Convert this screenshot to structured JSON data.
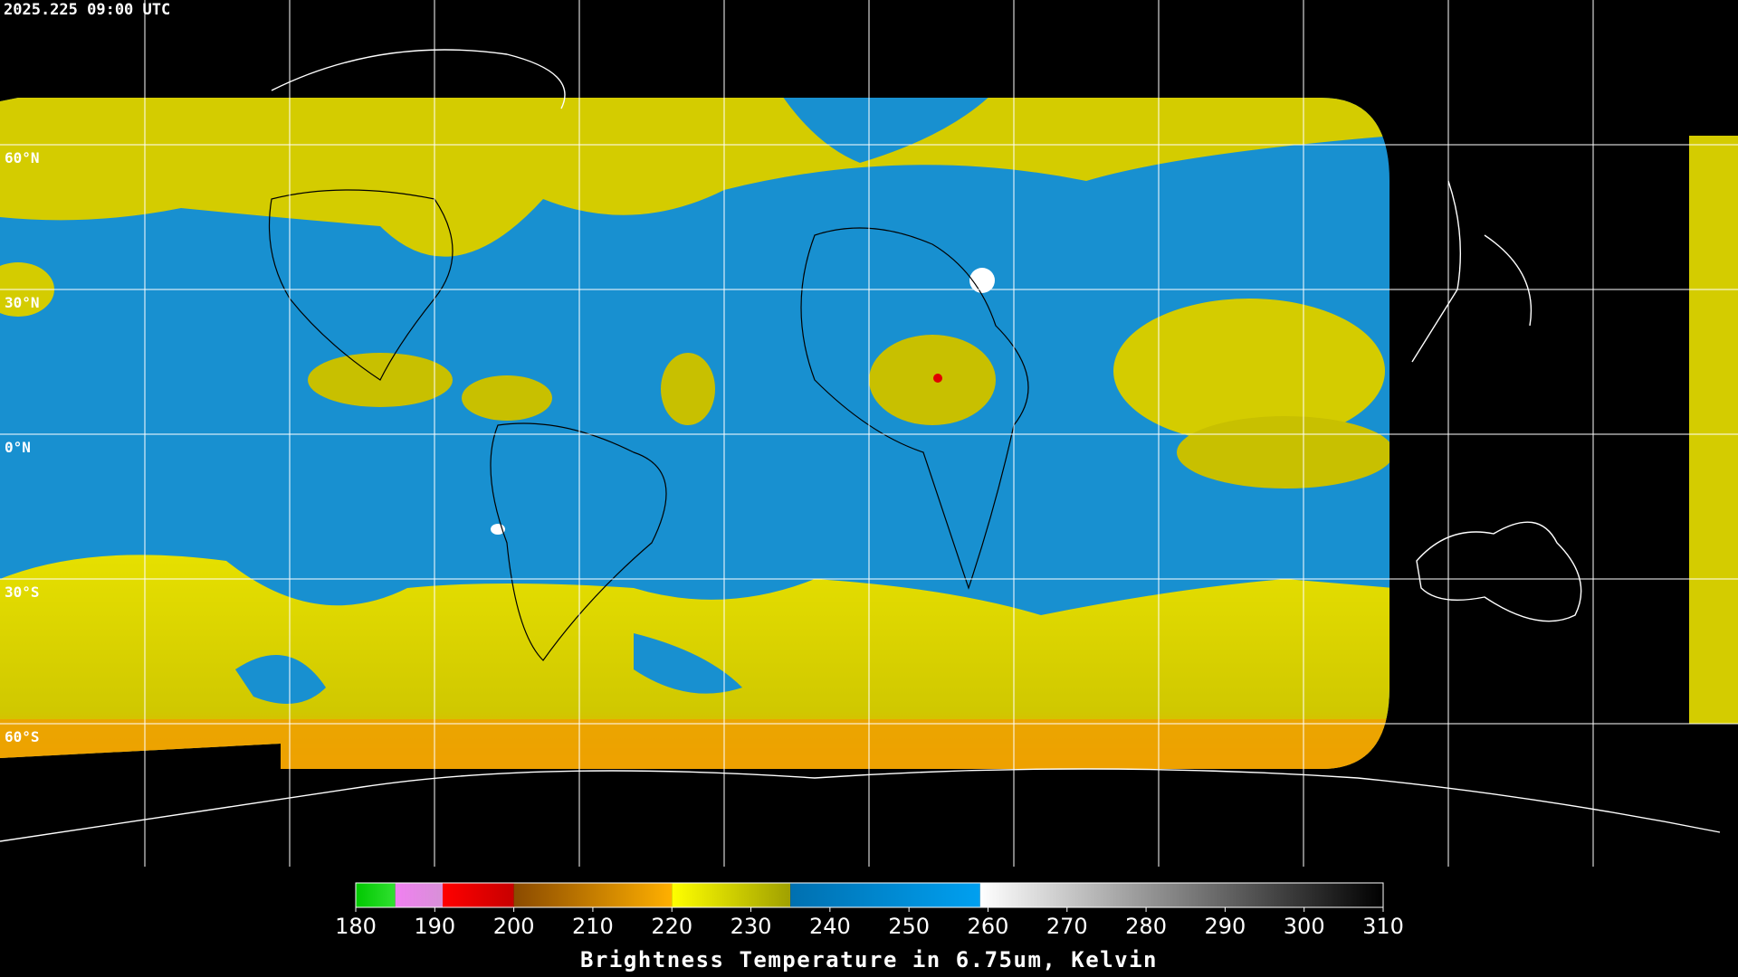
{
  "header": {
    "timestamp": "2025.225 09:00 UTC"
  },
  "map": {
    "lat_labels": [
      "60°N",
      "30°N",
      "0°N",
      "30°S",
      "60°S"
    ]
  },
  "colorbar": {
    "title": "Brightness Temperature in 6.75um, Kelvin",
    "range": [
      180,
      310
    ],
    "ticks": [
      180,
      190,
      200,
      210,
      220,
      230,
      240,
      250,
      260,
      270,
      280,
      290,
      300,
      310
    ],
    "segments": [
      {
        "from": 180,
        "to": 185,
        "colors": [
          "#00c800",
          "#30e030"
        ]
      },
      {
        "from": 185,
        "to": 191,
        "colors": [
          "#f080f0",
          "#d890d8"
        ]
      },
      {
        "from": 191,
        "to": 200,
        "colors": [
          "#ff0000",
          "#c80000"
        ]
      },
      {
        "from": 200,
        "to": 220,
        "colors": [
          "#8a4a00",
          "#ffb000"
        ]
      },
      {
        "from": 220,
        "to": 235,
        "colors": [
          "#ffff00",
          "#a0a000"
        ]
      },
      {
        "from": 235,
        "to": 259,
        "colors": [
          "#0070b0",
          "#00a0f0"
        ]
      },
      {
        "from": 259,
        "to": 310,
        "colors": [
          "#ffffff",
          "#000000"
        ]
      }
    ]
  }
}
